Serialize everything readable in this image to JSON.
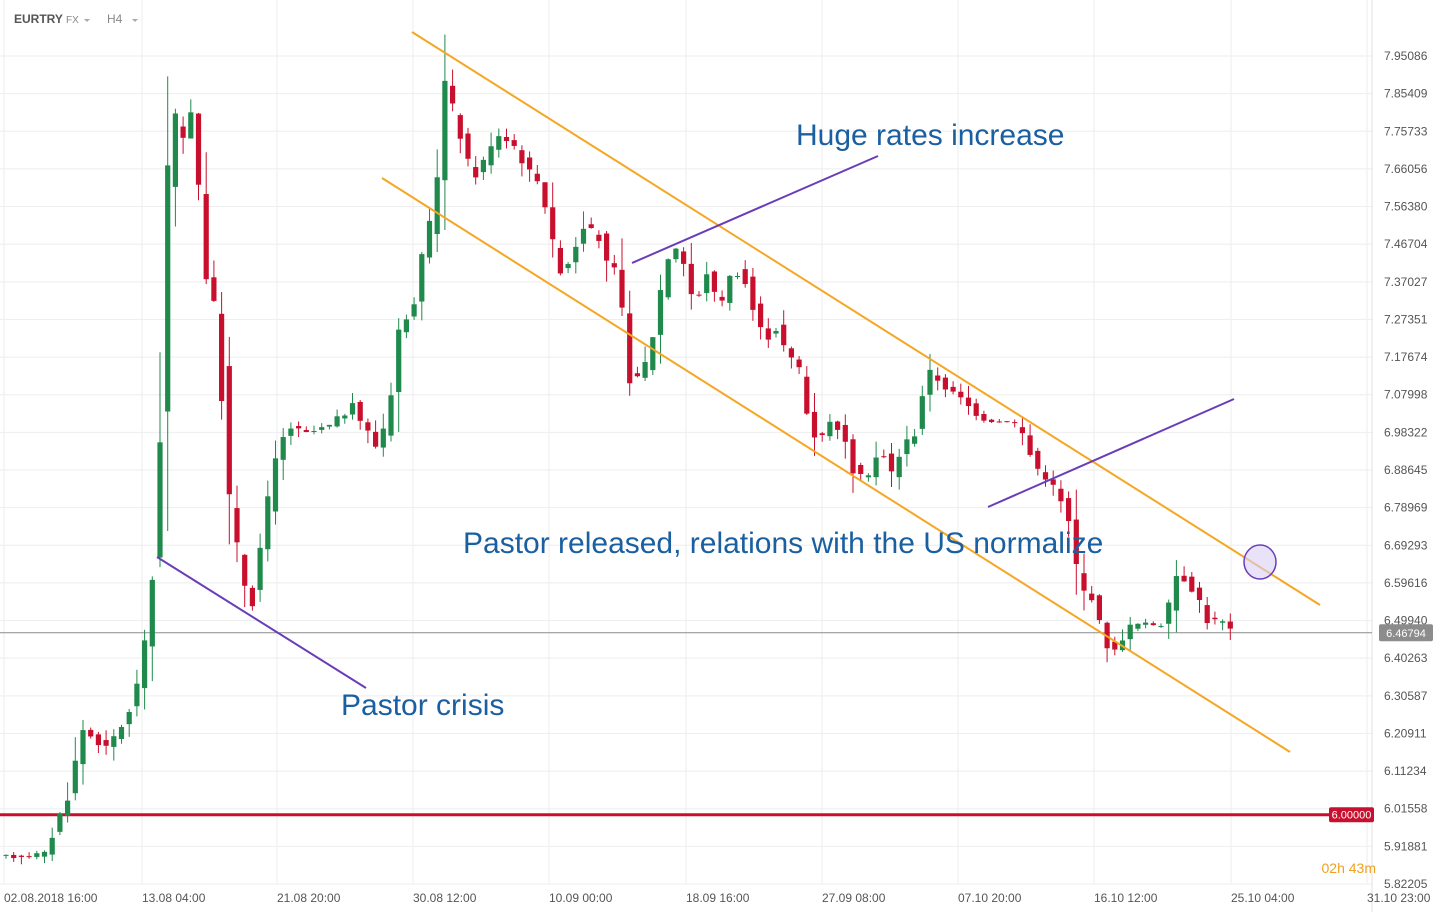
{
  "header": {
    "symbol": "EURTRY",
    "market": "FX",
    "timeframe": "H4"
  },
  "chart_data": {
    "type": "candlestick",
    "y_ticks": [
      "7.95086",
      "7.85409",
      "7.75733",
      "7.66056",
      "7.56380",
      "7.46704",
      "7.37027",
      "7.27351",
      "7.17674",
      "7.07998",
      "6.98322",
      "6.88645",
      "6.78969",
      "6.69293",
      "6.59616",
      "6.49940",
      "6.40263",
      "6.30587",
      "6.20911",
      "6.11234",
      "6.01558",
      "5.91881",
      "5.82205"
    ],
    "ylim": [
      5.822,
      8.02
    ],
    "x_ticks": [
      "02.08.2018  16:00",
      "13.08  04:00",
      "21.08  20:00",
      "30.08  12:00",
      "10.09  00:00",
      "18.09  16:00",
      "27.09  08:00",
      "07.10  20:00",
      "16.10  12:00",
      "25.10  04:00",
      "31.10  23:00"
    ],
    "price_path": [
      [
        0,
        5.89
      ],
      [
        6,
        5.9
      ],
      [
        9,
        6.05
      ],
      [
        11,
        6.22
      ],
      [
        14,
        6.17
      ],
      [
        17,
        6.26
      ],
      [
        19,
        6.43
      ],
      [
        20.5,
        6.7
      ],
      [
        21.5,
        7.3
      ],
      [
        22.5,
        7.97
      ],
      [
        23.5,
        7.6
      ],
      [
        24.5,
        7.85
      ],
      [
        25.5,
        7.8
      ],
      [
        26.5,
        7.45
      ],
      [
        28.5,
        7.25
      ],
      [
        30,
        6.8
      ],
      [
        31.5,
        6.62
      ],
      [
        33,
        6.55
      ],
      [
        34.5,
        6.75
      ],
      [
        36,
        6.9
      ],
      [
        37.5,
        7.0
      ],
      [
        40,
        6.98
      ],
      [
        43,
        7.0
      ],
      [
        46,
        7.05
      ],
      [
        47.5,
        7.0
      ],
      [
        49,
        6.95
      ],
      [
        50.5,
        7.02
      ],
      [
        52,
        7.25
      ],
      [
        53.5,
        7.28
      ],
      [
        55,
        7.42
      ],
      [
        56.5,
        7.55
      ],
      [
        58,
        7.88
      ],
      [
        60,
        7.75
      ],
      [
        61.5,
        7.63
      ],
      [
        63,
        7.68
      ],
      [
        65,
        7.75
      ],
      [
        67,
        7.72
      ],
      [
        69,
        7.65
      ],
      [
        70.5,
        7.63
      ],
      [
        72.5,
        7.4
      ],
      [
        74,
        7.42
      ],
      [
        76,
        7.52
      ],
      [
        78,
        7.48
      ],
      [
        79.5,
        7.38
      ],
      [
        80.5,
        7.42
      ],
      [
        81.5,
        7.15
      ],
      [
        83,
        7.12
      ],
      [
        84.5,
        7.18
      ],
      [
        86,
        7.35
      ],
      [
        87.5,
        7.48
      ],
      [
        89,
        7.42
      ],
      [
        90.5,
        7.3
      ],
      [
        92,
        7.4
      ],
      [
        93.5,
        7.3
      ],
      [
        95,
        7.38
      ],
      [
        96.5,
        7.4
      ],
      [
        98,
        7.3
      ],
      [
        99.5,
        7.22
      ],
      [
        101,
        7.25
      ],
      [
        102.5,
        7.18
      ],
      [
        104,
        7.15
      ],
      [
        105.5,
        6.98
      ],
      [
        107,
        6.98
      ],
      [
        108.5,
        7.02
      ],
      [
        110,
        6.95
      ],
      [
        111.5,
        6.86
      ],
      [
        113,
        6.88
      ],
      [
        114.5,
        6.94
      ],
      [
        116,
        6.88
      ],
      [
        117.5,
        6.95
      ],
      [
        119,
        6.98
      ],
      [
        120.5,
        7.14
      ],
      [
        122,
        7.12
      ],
      [
        123.5,
        7.09
      ],
      [
        125,
        7.07
      ],
      [
        126.5,
        7.04
      ],
      [
        128,
        7.02
      ],
      [
        130,
        7.01
      ],
      [
        131.5,
        7.02
      ],
      [
        133,
        6.98
      ],
      [
        134.5,
        6.9
      ],
      [
        136,
        6.87
      ],
      [
        137.5,
        6.83
      ],
      [
        139,
        6.75
      ],
      [
        140.5,
        6.58
      ],
      [
        142,
        6.56
      ],
      [
        143.5,
        6.45
      ],
      [
        145,
        6.42
      ],
      [
        146.5,
        6.48
      ],
      [
        148,
        6.49
      ],
      [
        150,
        6.49
      ],
      [
        151.5,
        6.49
      ],
      [
        153,
        6.62
      ],
      [
        154.5,
        6.6
      ],
      [
        156,
        6.55
      ],
      [
        157.5,
        6.48
      ],
      [
        158.5,
        6.52
      ],
      [
        159.5,
        6.47
      ]
    ],
    "last_price_label": "6.46794",
    "level_label": "6.00000",
    "annotations": [
      "Huge rates increase",
      "Pastor released, relations with the US normalize",
      "Pastor crisis"
    ],
    "countdown": {
      "hours": "02",
      "h_unit": "h",
      "minutes": "43",
      "m_unit": "m"
    },
    "colors": {
      "up": "#1f8a4c",
      "down": "#c8102e",
      "channel": "#f5a623",
      "trend": "#6a3db8",
      "level": "#c8102e",
      "last": "#888888",
      "text": "#1a5fa0"
    }
  }
}
